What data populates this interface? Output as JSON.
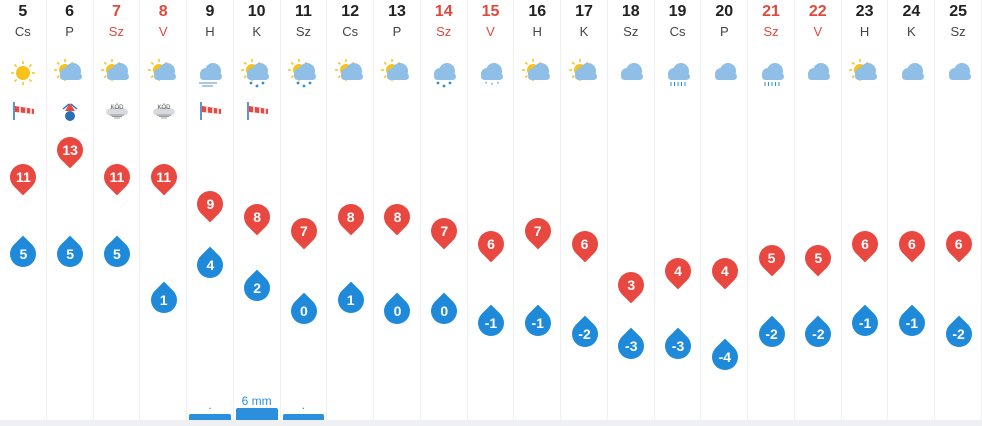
{
  "days": [
    {
      "num": "5",
      "name": "Cs",
      "weekend": false,
      "weather": "sun",
      "extra": "wind-sock-icon",
      "max": 11,
      "min": 5,
      "precip": ""
    },
    {
      "num": "6",
      "name": "P",
      "weekend": false,
      "weather": "sun-cloud",
      "extra": "wind-warning-icon",
      "max": 13,
      "min": 5,
      "precip": ""
    },
    {
      "num": "7",
      "name": "Sz",
      "weekend": true,
      "weather": "sun-cloud",
      "extra": "fog-label-icon",
      "extraText": "KÖD",
      "max": 11,
      "min": 5,
      "precip": ""
    },
    {
      "num": "8",
      "name": "V",
      "weekend": true,
      "weather": "sun-cloud",
      "extra": "fog-label-icon",
      "extraText": "KÖD",
      "max": 11,
      "min": 1,
      "precip": ""
    },
    {
      "num": "9",
      "name": "H",
      "weekend": false,
      "weather": "cloud-wind",
      "extra": "wind-sock-icon",
      "max": 9,
      "min": 4,
      "precip": "."
    },
    {
      "num": "10",
      "name": "K",
      "weekend": false,
      "weather": "sun-cloud-rain",
      "extra": "wind-sock-icon",
      "max": 8,
      "min": 2,
      "precip": "6 mm"
    },
    {
      "num": "11",
      "name": "Sz",
      "weekend": false,
      "weather": "sun-cloud-rain",
      "extra": "",
      "max": 7,
      "min": 0,
      "precip": "."
    },
    {
      "num": "12",
      "name": "Cs",
      "weekend": false,
      "weather": "sun-cloud",
      "extra": "",
      "max": 8,
      "min": 1,
      "precip": ""
    },
    {
      "num": "13",
      "name": "P",
      "weekend": false,
      "weather": "sun-cloud",
      "extra": "",
      "max": 8,
      "min": 0,
      "precip": ""
    },
    {
      "num": "14",
      "name": "Sz",
      "weekend": true,
      "weather": "cloud-rain",
      "extra": "",
      "max": 7,
      "min": 0,
      "precip": ""
    },
    {
      "num": "15",
      "name": "V",
      "weekend": true,
      "weather": "cloud-snow",
      "extra": "",
      "max": 6,
      "min": -1,
      "precip": ""
    },
    {
      "num": "16",
      "name": "H",
      "weekend": false,
      "weather": "sun-cloud",
      "extra": "",
      "max": 7,
      "min": -1,
      "precip": ""
    },
    {
      "num": "17",
      "name": "K",
      "weekend": false,
      "weather": "sun-cloud",
      "extra": "",
      "max": 6,
      "min": -2,
      "precip": ""
    },
    {
      "num": "18",
      "name": "Sz",
      "weekend": false,
      "weather": "cloud",
      "extra": "",
      "max": 3,
      "min": -3,
      "precip": ""
    },
    {
      "num": "19",
      "name": "Cs",
      "weekend": false,
      "weather": "cloud-drizzle",
      "extra": "",
      "max": 4,
      "min": -3,
      "precip": ""
    },
    {
      "num": "20",
      "name": "P",
      "weekend": false,
      "weather": "cloud",
      "extra": "",
      "max": 4,
      "min": -4,
      "precip": ""
    },
    {
      "num": "21",
      "name": "Sz",
      "weekend": true,
      "weather": "cloud-drizzle",
      "extra": "",
      "max": 5,
      "min": -2,
      "precip": ""
    },
    {
      "num": "22",
      "name": "V",
      "weekend": true,
      "weather": "cloud",
      "extra": "",
      "max": 5,
      "min": -2,
      "precip": ""
    },
    {
      "num": "23",
      "name": "H",
      "weekend": false,
      "weather": "sun-cloud",
      "extra": "",
      "max": 6,
      "min": -1,
      "precip": ""
    },
    {
      "num": "24",
      "name": "K",
      "weekend": false,
      "weather": "cloud",
      "extra": "",
      "max": 6,
      "min": -1,
      "precip": ""
    },
    {
      "num": "25",
      "name": "Sz",
      "weekend": false,
      "weather": "cloud",
      "extra": "",
      "max": 6,
      "min": -2,
      "precip": ""
    }
  ],
  "colors": {
    "max": "#e8483f",
    "min": "#1f8ad9",
    "weekend": "#e0493d",
    "cloud": "#8fbfe6",
    "sun": "#f7c21a"
  }
}
